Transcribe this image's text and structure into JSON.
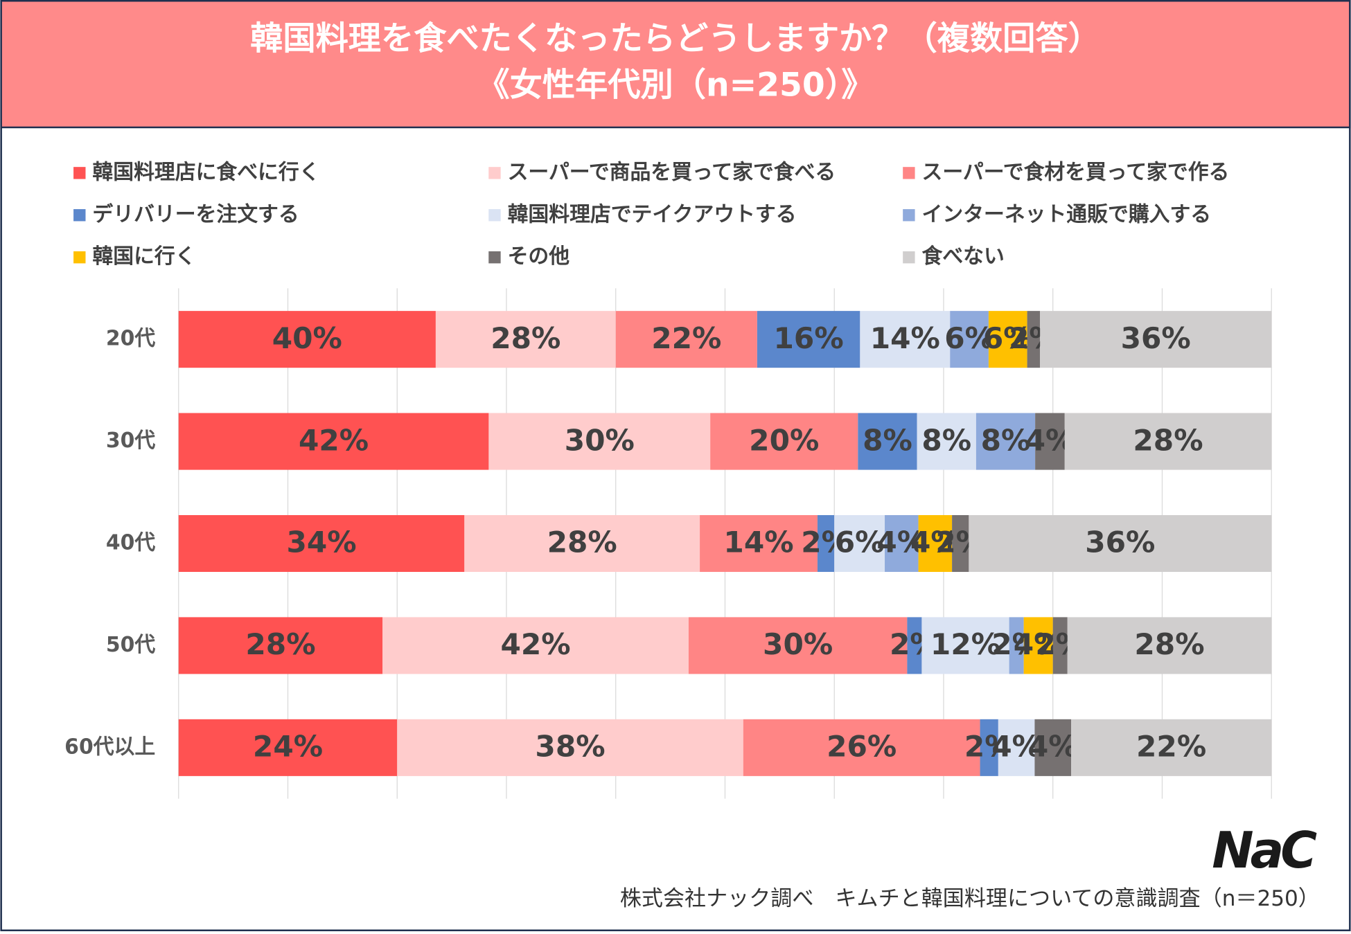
{
  "chart_data": {
    "type": "stacked-bar-100",
    "title": "韓国料理を食べたくなったらどうしますか？（複数回答）",
    "subtitle": "《女性年代別（n=250）》",
    "categories": [
      "20代",
      "30代",
      "40代",
      "50代",
      "60代以上"
    ],
    "grid": true,
    "legend": "top",
    "series": [
      {
        "name": "韓国料理店に食べに行く",
        "color": "#ff5252",
        "values": [
          40,
          42,
          34,
          28,
          24
        ],
        "value_labels": [
          "40%",
          "42%",
          "34%",
          "28%",
          "24%"
        ]
      },
      {
        "name": "スーパーで商品を買って家で食べる",
        "color": "#ffcccc",
        "values": [
          28,
          30,
          28,
          42,
          38
        ],
        "value_labels": [
          "28%",
          "30%",
          "28%",
          "42%",
          "38%"
        ]
      },
      {
        "name": "スーパーで食材を買って家で作る",
        "color": "#ff8585",
        "values": [
          22,
          20,
          14,
          30,
          26
        ],
        "value_labels": [
          "22%",
          "20%",
          "14%",
          "30%",
          "26%"
        ]
      },
      {
        "name": "デリバリーを注文する",
        "color": "#5b87cc",
        "values": [
          16,
          8,
          2,
          2,
          2
        ],
        "value_labels": [
          "16%",
          "8%",
          "2%",
          "2%",
          "2%"
        ]
      },
      {
        "name": "韓国料理店でテイクアウトする",
        "color": "#dae3f3",
        "values": [
          14,
          8,
          6,
          12,
          4
        ],
        "value_labels": [
          "14%",
          "8%",
          "6%",
          "12%",
          "4%"
        ]
      },
      {
        "name": "インターネット通販で購入する",
        "color": "#8faadc",
        "values": [
          6,
          8,
          4,
          2,
          0
        ],
        "value_labels": [
          "6%",
          "8%",
          "4%",
          "2%",
          null
        ]
      },
      {
        "name": "韓国に行く",
        "color": "#ffc000",
        "values": [
          6,
          0,
          4,
          4,
          0
        ],
        "value_labels": [
          "6%",
          null,
          "4%",
          "4%",
          null
        ]
      },
      {
        "name": "その他",
        "color": "#767171",
        "values": [
          2,
          4,
          2,
          2,
          4
        ],
        "value_labels": [
          "2%",
          "4%",
          "2%",
          "2%",
          "4%"
        ]
      },
      {
        "name": "食べない",
        "color": "#d0cece",
        "values": [
          36,
          28,
          36,
          28,
          22
        ],
        "value_labels": [
          "36%",
          "28%",
          "36%",
          "28%",
          "22%"
        ]
      }
    ],
    "logo": "NaC",
    "source": "株式会社ナック調べ　キムチと韓国料理についての意識調査（n＝250）"
  }
}
